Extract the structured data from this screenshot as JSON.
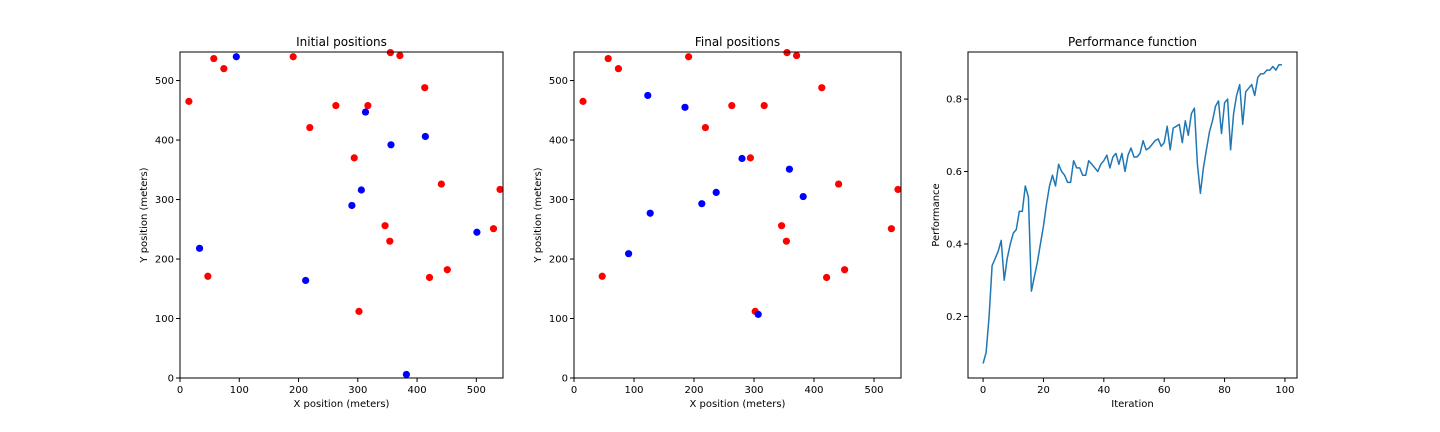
{
  "colors": {
    "red_points": "#ff0000",
    "blue_points": "#0000ff",
    "line": "#1f77b4",
    "axes": "#000000"
  },
  "chart_data": [
    {
      "type": "scatter",
      "title": "Initial positions",
      "xlabel": "X position (meters)",
      "ylabel": "Y position (meters)",
      "xlim": [
        0,
        545
      ],
      "ylim": [
        0,
        548
      ],
      "xticks": [
        0,
        100,
        200,
        300,
        400,
        500
      ],
      "yticks": [
        0,
        100,
        200,
        300,
        400,
        500
      ],
      "grid": false,
      "series": [
        {
          "color": "red",
          "points": [
            [
              15,
              465
            ],
            [
              57,
              537
            ],
            [
              74,
              520
            ],
            [
              191,
              540
            ],
            [
              219,
              421
            ],
            [
              263,
              458
            ],
            [
              317,
              458
            ],
            [
              294,
              370
            ],
            [
              355,
              547
            ],
            [
              371,
              542
            ],
            [
              413,
              488
            ],
            [
              441,
              326
            ],
            [
              540,
              317
            ],
            [
              529,
              251
            ],
            [
              346,
              256
            ],
            [
              354,
              230
            ],
            [
              47,
              171
            ],
            [
              421,
              169
            ],
            [
              451,
              182
            ],
            [
              302,
              112
            ]
          ]
        },
        {
          "color": "blue",
          "points": [
            [
              95,
              540
            ],
            [
              313,
              447
            ],
            [
              414,
              406
            ],
            [
              356,
              392
            ],
            [
              306,
              316
            ],
            [
              290,
              290
            ],
            [
              33,
              218
            ],
            [
              501,
              245
            ],
            [
              212,
              164
            ],
            [
              382,
              6
            ]
          ]
        }
      ]
    },
    {
      "type": "scatter",
      "title": "Final positions",
      "xlabel": "X position (meters)",
      "ylabel": "Y position (meters)",
      "xlim": [
        0,
        545
      ],
      "ylim": [
        0,
        548
      ],
      "xticks": [
        0,
        100,
        200,
        300,
        400,
        500
      ],
      "yticks": [
        0,
        100,
        200,
        300,
        400,
        500
      ],
      "grid": false,
      "series": [
        {
          "color": "red",
          "points": [
            [
              15,
              465
            ],
            [
              57,
              537
            ],
            [
              74,
              520
            ],
            [
              191,
              540
            ],
            [
              219,
              421
            ],
            [
              263,
              458
            ],
            [
              317,
              458
            ],
            [
              294,
              370
            ],
            [
              355,
              547
            ],
            [
              371,
              542
            ],
            [
              413,
              488
            ],
            [
              441,
              326
            ],
            [
              540,
              317
            ],
            [
              529,
              251
            ],
            [
              346,
              256
            ],
            [
              354,
              230
            ],
            [
              47,
              171
            ],
            [
              421,
              169
            ],
            [
              451,
              182
            ],
            [
              302,
              112
            ]
          ]
        },
        {
          "color": "blue",
          "points": [
            [
              123,
              475
            ],
            [
              185,
              455
            ],
            [
              280,
              369
            ],
            [
              359,
              351
            ],
            [
              382,
              305
            ],
            [
              237,
              312
            ],
            [
              213,
              293
            ],
            [
              127,
              277
            ],
            [
              91,
              209
            ],
            [
              307,
              107
            ]
          ]
        }
      ]
    },
    {
      "type": "line",
      "title": "Performance function",
      "xlabel": "Iteration",
      "ylabel": "Performance",
      "xlim": [
        -5,
        104
      ],
      "ylim": [
        0.03,
        0.93
      ],
      "xticks": [
        0,
        20,
        40,
        60,
        80,
        100
      ],
      "yticks": [
        0.2,
        0.4,
        0.6,
        0.8
      ],
      "grid": false,
      "series": [
        {
          "x": [
            0,
            1,
            2,
            3,
            4,
            5,
            6,
            7,
            8,
            9,
            10,
            11,
            12,
            13,
            14,
            15,
            16,
            17,
            18,
            19,
            20,
            21,
            22,
            23,
            24,
            25,
            26,
            27,
            28,
            29,
            30,
            31,
            32,
            33,
            34,
            35,
            36,
            37,
            38,
            39,
            40,
            41,
            42,
            43,
            44,
            45,
            46,
            47,
            48,
            49,
            50,
            51,
            52,
            53,
            54,
            55,
            56,
            57,
            58,
            59,
            60,
            61,
            62,
            63,
            64,
            65,
            66,
            67,
            68,
            69,
            70,
            71,
            72,
            73,
            74,
            75,
            76,
            77,
            78,
            79,
            80,
            81,
            82,
            83,
            84,
            85,
            86,
            87,
            88,
            89,
            90,
            91,
            92,
            93,
            94,
            95,
            96,
            97,
            98,
            99
          ],
          "values": [
            0.07,
            0.1,
            0.2,
            0.34,
            0.36,
            0.38,
            0.41,
            0.3,
            0.36,
            0.4,
            0.43,
            0.44,
            0.49,
            0.49,
            0.56,
            0.53,
            0.27,
            0.31,
            0.35,
            0.4,
            0.45,
            0.51,
            0.56,
            0.59,
            0.56,
            0.62,
            0.6,
            0.59,
            0.57,
            0.57,
            0.63,
            0.61,
            0.61,
            0.59,
            0.59,
            0.63,
            0.62,
            0.61,
            0.6,
            0.62,
            0.63,
            0.645,
            0.61,
            0.64,
            0.65,
            0.62,
            0.65,
            0.6,
            0.645,
            0.665,
            0.64,
            0.64,
            0.65,
            0.685,
            0.66,
            0.665,
            0.675,
            0.685,
            0.69,
            0.67,
            0.68,
            0.725,
            0.66,
            0.72,
            0.725,
            0.73,
            0.68,
            0.74,
            0.7,
            0.76,
            0.775,
            0.62,
            0.54,
            0.61,
            0.66,
            0.71,
            0.74,
            0.78,
            0.795,
            0.705,
            0.79,
            0.8,
            0.66,
            0.76,
            0.81,
            0.84,
            0.73,
            0.82,
            0.83,
            0.84,
            0.81,
            0.86,
            0.87,
            0.87,
            0.88,
            0.88,
            0.89,
            0.88,
            0.895,
            0.895
          ]
        }
      ]
    }
  ]
}
